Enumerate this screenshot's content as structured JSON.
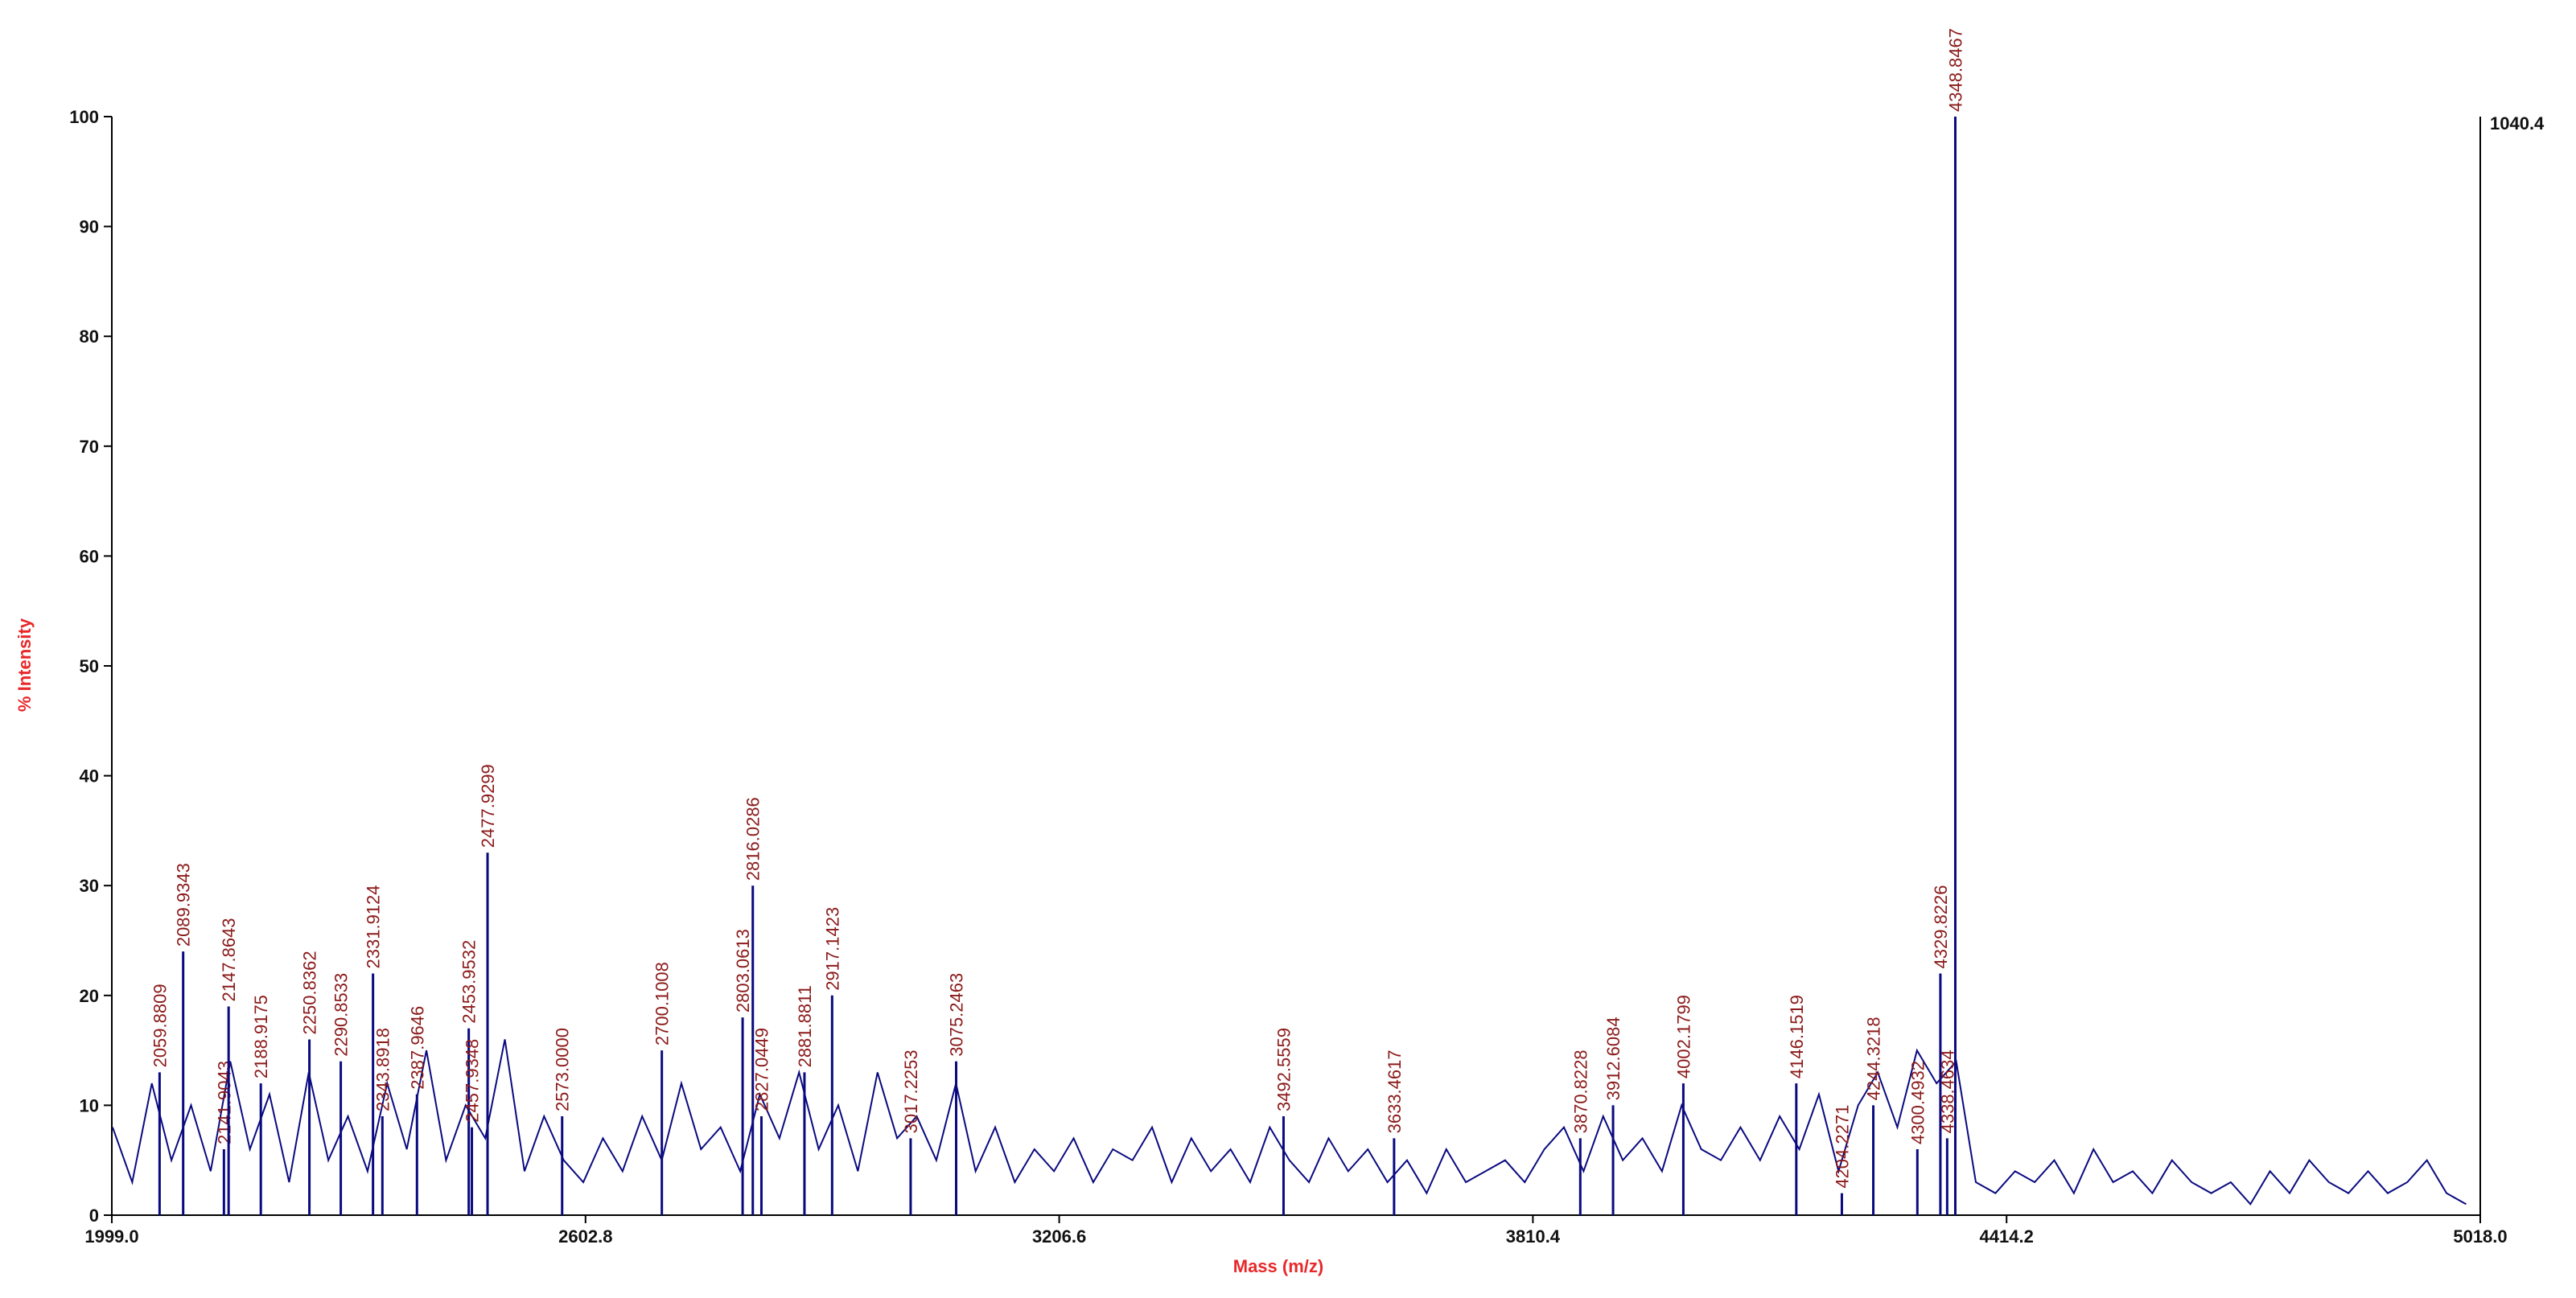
{
  "chart_data": {
    "type": "spectrum",
    "x_label": "Mass (m/z)",
    "y_label": "% Intensity",
    "max_counts": 1040.4,
    "color": "#0a0a80",
    "label_color": "#8b1a1a",
    "xlim": [
      1999,
      5018
    ],
    "xticks": [
      {
        "value": 1999,
        "label": "1999.0"
      },
      2602.8,
      3206.6,
      3810.4,
      4414.2,
      {
        "value": 5018,
        "label": "5018.0"
      }
    ],
    "ylim": [
      0,
      100
    ],
    "yticks": [
      0,
      10,
      20,
      30,
      40,
      50,
      60,
      70,
      80,
      90,
      100
    ],
    "series": [
      {
        "x": [
          2000,
          2025,
          2050,
          2075,
          2100,
          2125,
          2150,
          2175,
          2200,
          2225,
          2250,
          2275,
          2300,
          2325,
          2350,
          2375,
          2400,
          2425,
          2450,
          2475,
          2500,
          2525,
          2550,
          2575,
          2600,
          2625,
          2650,
          2675,
          2700,
          2725,
          2750,
          2775,
          2800,
          2825,
          2850,
          2875,
          2900,
          2925,
          2950,
          2975,
          3000,
          3025,
          3050,
          3075,
          3100,
          3125,
          3150,
          3175,
          3200,
          3225,
          3250,
          3275,
          3300,
          3325,
          3350,
          3375,
          3400,
          3425,
          3450,
          3475,
          3500,
          3525,
          3550,
          3575,
          3600,
          3625,
          3650,
          3675,
          3700,
          3725,
          3750,
          3775,
          3800,
          3825,
          3850,
          3875,
          3900,
          3925,
          3950,
          3975,
          4000,
          4025,
          4050,
          4075,
          4100,
          4125,
          4150,
          4175,
          4200,
          4225,
          4250,
          4275,
          4300,
          4325,
          4350,
          4375,
          4400,
          4425,
          4450,
          4475,
          4500,
          4525,
          4550,
          4575,
          4600,
          4625,
          4650,
          4675,
          4700,
          4725,
          4750,
          4775,
          4800,
          4825,
          4850,
          4875,
          4900,
          4925,
          4950,
          4975,
          5000
        ],
        "values": [
          8,
          3,
          12,
          5,
          10,
          4,
          14,
          6,
          11,
          3,
          13,
          5,
          9,
          4,
          12,
          6,
          15,
          5,
          10,
          7,
          16,
          4,
          9,
          5,
          3,
          7,
          4,
          9,
          5,
          12,
          6,
          8,
          4,
          11,
          7,
          13,
          6,
          10,
          4,
          13,
          7,
          9,
          5,
          12,
          4,
          8,
          3,
          6,
          4,
          7,
          3,
          6,
          5,
          8,
          3,
          7,
          4,
          6,
          3,
          8,
          5,
          3,
          7,
          4,
          6,
          3,
          5,
          2,
          6,
          3,
          4,
          5,
          3,
          6,
          8,
          4,
          9,
          5,
          7,
          4,
          10,
          6,
          5,
          8,
          5,
          9,
          6,
          11,
          4,
          10,
          13,
          8,
          15,
          12,
          14,
          3,
          2,
          4,
          3,
          5,
          2,
          6,
          3,
          4,
          2,
          5,
          3,
          2,
          3,
          1,
          4,
          2,
          5,
          3,
          2,
          4,
          2,
          3,
          5,
          2,
          1
        ]
      }
    ],
    "peaks": {
      "labels": [
        "2059.8809",
        "2089.9343",
        "2141.9043",
        "2147.8643",
        "2188.9175",
        "2250.8362",
        "2290.8533",
        "2331.9124",
        "2343.8918",
        "2387.9646",
        "2453.9532",
        "2457.9348",
        "2477.9299",
        "2573.0000",
        "2700.1008",
        "2803.0613",
        "2816.0286",
        "2827.0449",
        "2881.8811",
        "2917.1423",
        "3017.2253",
        "3075.2463",
        "3492.5559",
        "3633.4617",
        "3870.8228",
        "3912.6084",
        "4002.1799",
        "4146.1519",
        "4204.2271",
        "4244.3218",
        "4300.4932",
        "4329.8226",
        "4338.4634",
        "4348.8467"
      ],
      "x": [
        2059.8809,
        2089.9343,
        2141.9043,
        2147.8643,
        2188.9175,
        2250.8362,
        2290.8533,
        2331.9124,
        2343.8918,
        2387.9646,
        2453.9532,
        2457.9348,
        2477.9299,
        2573,
        2700.1008,
        2803.0613,
        2816.0286,
        2827.0449,
        2881.8811,
        2917.1423,
        3017.2253,
        3075.2463,
        3492.5559,
        3633.4617,
        3870.8228,
        3912.6084,
        4002.1799,
        4146.1519,
        4204.2271,
        4244.3218,
        4300.4932,
        4329.8226,
        4338.4634,
        4348.8467
      ],
      "values": [
        13,
        24,
        6,
        19,
        12,
        16,
        14,
        22,
        9,
        11,
        17,
        8,
        33,
        9,
        15,
        18,
        30,
        9,
        13,
        20,
        7,
        14,
        9,
        7,
        7,
        10,
        12,
        12,
        2,
        10,
        6,
        22,
        7,
        100
      ]
    }
  }
}
